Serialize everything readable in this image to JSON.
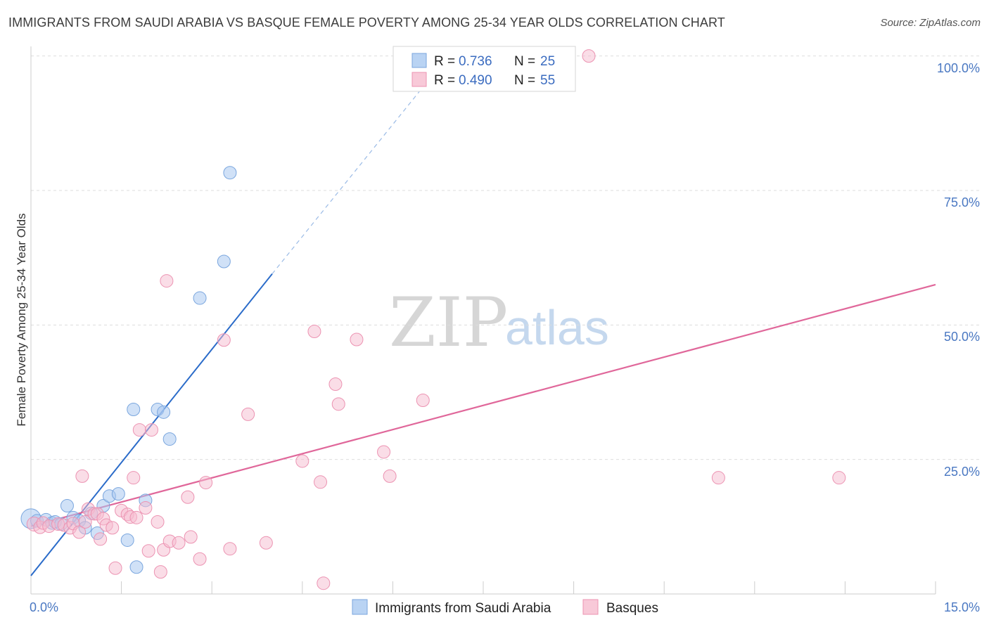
{
  "header": {
    "title": "IMMIGRANTS FROM SAUDI ARABIA VS BASQUE FEMALE POVERTY AMONG 25-34 YEAR OLDS CORRELATION CHART",
    "source": "Source: ZipAtlas.com"
  },
  "watermark": {
    "zip": "ZIP",
    "atlas": "atlas"
  },
  "colors": {
    "blue_fill": "#a9c8f0",
    "blue_stroke": "#7aa6de",
    "blue_line": "#2a6bc9",
    "pink_fill": "#f6bcd0",
    "pink_stroke": "#ec93b2",
    "pink_line": "#e0679a",
    "grid": "#dddddd",
    "axis_text": "#4a78c2"
  },
  "legend": {
    "rows": [
      {
        "r_label": "R = ",
        "r_value": "0.736",
        "n_label": "N = ",
        "n_value": "25"
      },
      {
        "r_label": "R = ",
        "r_value": "0.490",
        "n_label": "N = ",
        "n_value": "55"
      }
    ]
  },
  "chart_data": {
    "type": "scatter",
    "title": "IMMIGRANTS FROM SAUDI ARABIA VS BASQUE FEMALE POVERTY AMONG 25-34 YEAR OLDS CORRELATION CHART",
    "xlabel": "",
    "ylabel": "Female Poverty Among 25-34 Year Olds",
    "xlim": [
      0,
      15
    ],
    "ylim": [
      0,
      101
    ],
    "x_tick_labels": [
      "0.0%",
      "15.0%"
    ],
    "y_ticks": [
      25,
      50,
      75,
      100
    ],
    "y_tick_labels": [
      "25.0%",
      "50.0%",
      "75.0%",
      "100.0%"
    ],
    "grid": true,
    "legend_position": "top-center",
    "series": [
      {
        "name": "Immigrants from Saudi Arabia",
        "color": "blue",
        "R": 0.736,
        "N": 25,
        "trend": {
          "x0": 0.0,
          "y0": 3.4,
          "x1": 4.0,
          "y1": 59.5,
          "dash_to_x": 6.7,
          "dash_to_y": 97
        },
        "points": [
          [
            0.0,
            14.0,
            14
          ],
          [
            0.1,
            13.6,
            9
          ],
          [
            0.25,
            13.8,
            9
          ],
          [
            0.35,
            13.2,
            9
          ],
          [
            0.4,
            13.4,
            9
          ],
          [
            0.5,
            13.0,
            9
          ],
          [
            0.6,
            16.4,
            9
          ],
          [
            0.7,
            14.2,
            9
          ],
          [
            0.8,
            13.6,
            9
          ],
          [
            0.9,
            12.3,
            9
          ],
          [
            1.0,
            15.0,
            9
          ],
          [
            1.1,
            11.3,
            9
          ],
          [
            1.2,
            16.4,
            9
          ],
          [
            1.3,
            18.2,
            9
          ],
          [
            1.45,
            18.6,
            9
          ],
          [
            1.6,
            10.0,
            9
          ],
          [
            1.7,
            34.3,
            9
          ],
          [
            1.75,
            5.0,
            9
          ],
          [
            1.9,
            17.4,
            9
          ],
          [
            2.1,
            34.3,
            9
          ],
          [
            2.2,
            33.8,
            9
          ],
          [
            2.3,
            28.8,
            9
          ],
          [
            2.8,
            55.0,
            9
          ],
          [
            3.2,
            61.8,
            9
          ],
          [
            3.3,
            78.3,
            9
          ]
        ]
      },
      {
        "name": "Basques",
        "color": "pink",
        "R": 0.49,
        "N": 55,
        "trend": {
          "x0": 0.0,
          "y0": 12.6,
          "x1": 15.0,
          "y1": 57.5
        },
        "points": [
          [
            0.05,
            13.0,
            10
          ],
          [
            0.15,
            12.4,
            9
          ],
          [
            0.2,
            13.2,
            9
          ],
          [
            0.3,
            12.6,
            9
          ],
          [
            0.45,
            13.0,
            9
          ],
          [
            0.55,
            12.8,
            9
          ],
          [
            0.65,
            12.3,
            9
          ],
          [
            0.7,
            13.1,
            9
          ],
          [
            0.8,
            11.5,
            9
          ],
          [
            0.85,
            21.9,
            9
          ],
          [
            0.9,
            13.4,
            9
          ],
          [
            0.95,
            15.8,
            9
          ],
          [
            1.05,
            14.9,
            9
          ],
          [
            1.1,
            14.9,
            9
          ],
          [
            1.15,
            10.2,
            9
          ],
          [
            1.2,
            14.0,
            9
          ],
          [
            1.25,
            12.8,
            9
          ],
          [
            1.35,
            12.3,
            9
          ],
          [
            1.4,
            4.8,
            9
          ],
          [
            1.5,
            15.5,
            9
          ],
          [
            1.6,
            14.8,
            9
          ],
          [
            1.65,
            14.3,
            9
          ],
          [
            1.7,
            21.6,
            9
          ],
          [
            1.75,
            14.2,
            9
          ],
          [
            1.8,
            30.5,
            9
          ],
          [
            1.9,
            16.0,
            9
          ],
          [
            1.95,
            8.0,
            9
          ],
          [
            2.0,
            30.5,
            9
          ],
          [
            2.1,
            13.4,
            9
          ],
          [
            2.15,
            4.1,
            9
          ],
          [
            2.2,
            8.2,
            9
          ],
          [
            2.25,
            58.2,
            9
          ],
          [
            2.3,
            9.8,
            9
          ],
          [
            2.45,
            9.5,
            9
          ],
          [
            2.6,
            18.0,
            9
          ],
          [
            2.65,
            10.6,
            9
          ],
          [
            2.8,
            6.5,
            9
          ],
          [
            2.9,
            20.7,
            9
          ],
          [
            3.2,
            47.2,
            9
          ],
          [
            3.3,
            8.4,
            9
          ],
          [
            3.6,
            33.4,
            9
          ],
          [
            3.9,
            9.5,
            9
          ],
          [
            4.5,
            24.7,
            9
          ],
          [
            4.7,
            48.8,
            9
          ],
          [
            4.8,
            20.8,
            9
          ],
          [
            4.85,
            2.0,
            9
          ],
          [
            5.05,
            39.0,
            9
          ],
          [
            5.1,
            35.3,
            9
          ],
          [
            5.4,
            47.3,
            9
          ],
          [
            5.85,
            26.4,
            9
          ],
          [
            5.95,
            21.9,
            9
          ],
          [
            6.5,
            36.0,
            9
          ],
          [
            9.25,
            100.0,
            9
          ],
          [
            11.4,
            21.6,
            9
          ],
          [
            13.4,
            21.6,
            9
          ]
        ]
      }
    ]
  },
  "bottom_legend": {
    "items": [
      {
        "label": "Immigrants from Saudi Arabia"
      },
      {
        "label": "Basques"
      }
    ]
  }
}
